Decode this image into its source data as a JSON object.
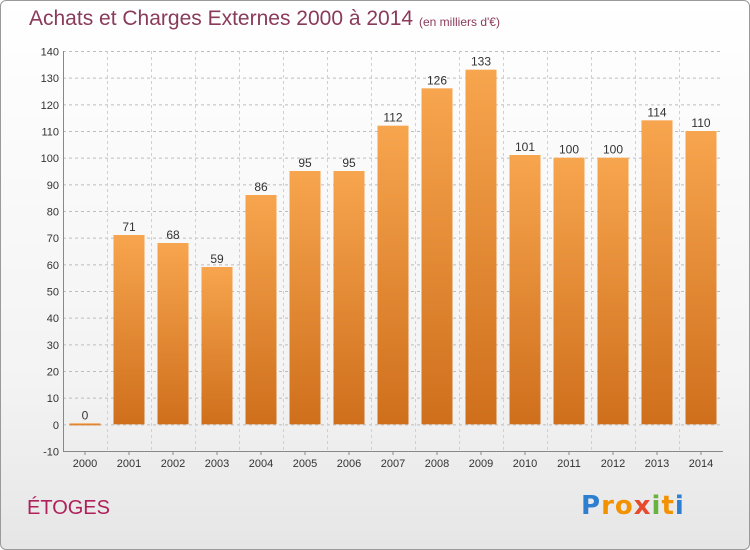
{
  "header": {
    "title": "Achats et Charges Externes 2000 à 2014",
    "subtitle": "(en milliers d'€)"
  },
  "footer": {
    "commune": "ÉTOGES",
    "logo": {
      "letters": [
        "P",
        "r",
        "o",
        "x",
        "i",
        "t",
        "i"
      ],
      "colors": [
        "#2f7fd0",
        "#f39200",
        "#f39200",
        "#e84a2e",
        "#6ab23e",
        "#f39200",
        "#2f7fd0"
      ]
    }
  },
  "chart_data": {
    "type": "bar",
    "title": "Achats et Charges Externes 2000 à 2014",
    "subtitle": "(en milliers d'€)",
    "categories": [
      "2000",
      "2001",
      "2002",
      "2003",
      "2004",
      "2005",
      "2006",
      "2007",
      "2008",
      "2009",
      "2010",
      "2011",
      "2012",
      "2013",
      "2014"
    ],
    "values": [
      0,
      71,
      68,
      59,
      86,
      95,
      95,
      112,
      126,
      133,
      101,
      100,
      100,
      114,
      110
    ],
    "data_labels": [
      "0",
      "71",
      "68",
      "59",
      "86",
      "95",
      "95",
      "112",
      "126",
      "133",
      "101",
      "100",
      "100",
      "114",
      "110"
    ],
    "ylim": [
      -10,
      140
    ],
    "yticks": [
      "-10",
      "0",
      "10",
      "20",
      "30",
      "40",
      "50",
      "60",
      "70",
      "80",
      "90",
      "100",
      "110",
      "120",
      "130",
      "140"
    ],
    "grid": true,
    "bar_color_top": "#f7a54e",
    "bar_color_bottom": "#cf6f1c",
    "xlabel": "",
    "ylabel": ""
  }
}
